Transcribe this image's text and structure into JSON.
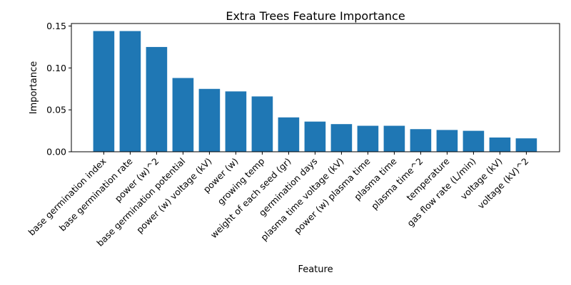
{
  "chart_data": {
    "type": "bar",
    "title": "Extra Trees Feature Importance",
    "xlabel": "Feature",
    "ylabel": "Importance",
    "ylim": [
      0,
      0.153
    ],
    "yticks": [
      "0.00",
      "0.05",
      "0.10",
      "0.15"
    ],
    "grid": false,
    "bar_color": "#1f77b4",
    "categories": [
      "base germination index",
      "base germination rate",
      "power (w)^2",
      "base germination potential",
      "power (w) voltage (kV)",
      "power (w)",
      "growing temp",
      "weight of each seed (gr)",
      "germination days",
      "plasma time voltage (kV)",
      "power (w) plasma time",
      "plasma time",
      "plasma time^2",
      "temperature",
      "gas flow rate (L/min)",
      "voltage (kV)",
      "voltage (kV)^2"
    ],
    "values": [
      0.144,
      0.144,
      0.125,
      0.088,
      0.075,
      0.072,
      0.066,
      0.041,
      0.036,
      0.033,
      0.031,
      0.031,
      0.027,
      0.026,
      0.025,
      0.017,
      0.016
    ]
  }
}
